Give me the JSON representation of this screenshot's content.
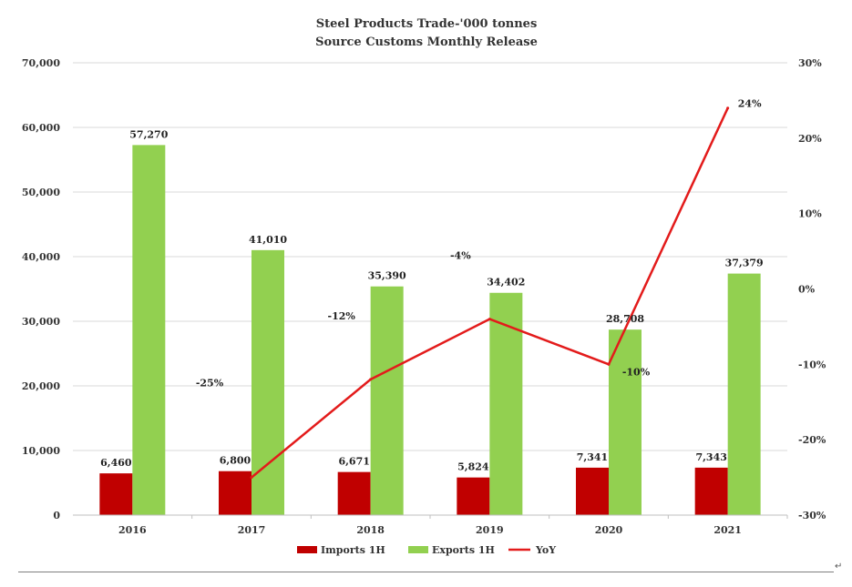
{
  "chart_data": {
    "type": "bar",
    "title": "Steel Products Trade-'000 tonnes",
    "subtitle": "Source Customs Monthly Release",
    "categories": [
      "2016",
      "2017",
      "2018",
      "2019",
      "2020",
      "2021"
    ],
    "series": [
      {
        "name": "Imports 1H",
        "type": "bar",
        "axis": "left",
        "color": "#c00000",
        "values": [
          6460,
          6800,
          6671,
          5824,
          7341,
          7343
        ],
        "labels": [
          "6,460",
          "6,800",
          "6,671",
          "5,824",
          "7,341",
          "7,343"
        ]
      },
      {
        "name": "Exports 1H",
        "type": "bar",
        "axis": "left",
        "color": "#92d050",
        "values": [
          57270,
          41010,
          35390,
          34402,
          28708,
          37379
        ],
        "labels": [
          "57,270",
          "41,010",
          "35,390",
          "34,402",
          "28,708",
          "37,379"
        ]
      },
      {
        "name": "YoY",
        "type": "line",
        "axis": "right",
        "color": "#e31b1b",
        "x": [
          "2017",
          "2018",
          "2019",
          "2020",
          "2021"
        ],
        "values": [
          -25,
          -12,
          -4,
          -10,
          24
        ],
        "labels": [
          "-25%",
          "-12%",
          "-4%",
          "-10%",
          "24%"
        ]
      }
    ],
    "y_left": {
      "min": 0,
      "max": 70000,
      "step": 10000,
      "tick_labels": [
        "0",
        "10,000",
        "20,000",
        "30,000",
        "40,000",
        "50,000",
        "60,000",
        "70,000"
      ]
    },
    "y_right": {
      "min": -30,
      "max": 30,
      "step": 10,
      "tick_labels": [
        "-30%",
        "-20%",
        "-10%",
        "0%",
        "10%",
        "20%",
        "30%"
      ]
    },
    "grid": true,
    "legend_position": "bottom"
  },
  "footer": {
    "return_mark": "↵"
  }
}
